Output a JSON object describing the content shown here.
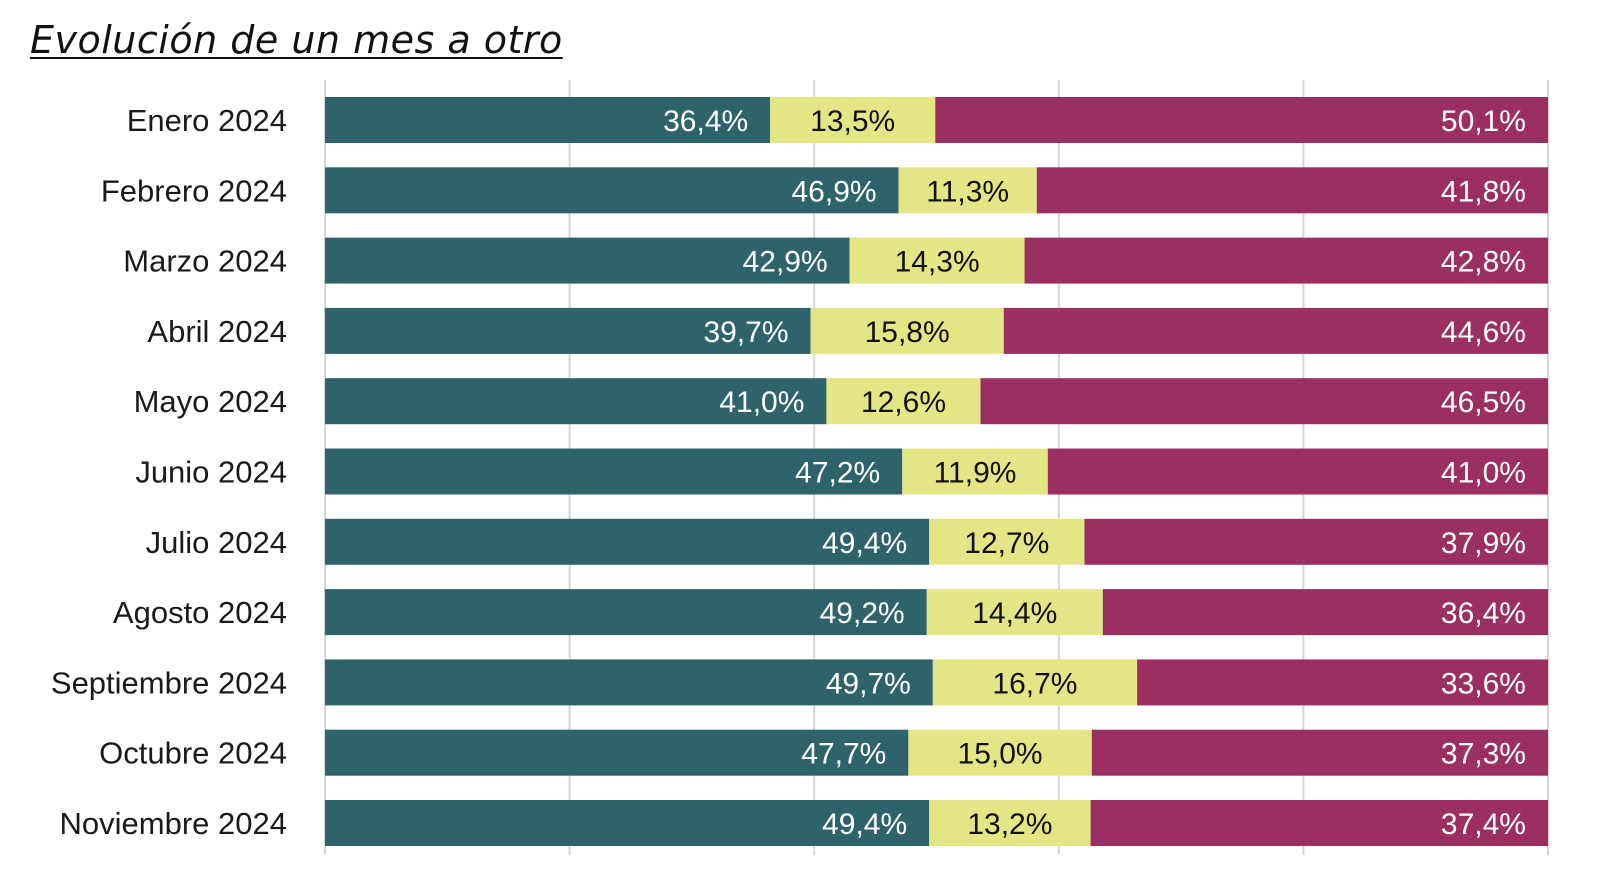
{
  "title": "Evolución de un mes a otro",
  "colors": {
    "series1": "#2e636c",
    "series2": "#e4e686",
    "series3": "#9c2f62",
    "grid": "#d6d6d6",
    "label_light": "#ffffff",
    "label_dark": "#111111"
  },
  "chart_data": {
    "type": "bar",
    "orientation": "horizontal",
    "stacked": true,
    "title": "Evolución de un mes a otro",
    "xlabel": "",
    "ylabel": "",
    "xlim": [
      0,
      100
    ],
    "grid": true,
    "legend": "none",
    "categories": [
      "Enero 2024",
      "Febrero 2024",
      "Marzo 2024",
      "Abril 2024",
      "Mayo 2024",
      "Junio 2024",
      "Julio 2024",
      "Agosto 2024",
      "Septiembre 2024",
      "Octubre 2024",
      "Noviembre 2024"
    ],
    "series": [
      {
        "values": [
          36.4,
          46.9,
          42.9,
          39.7,
          41.0,
          47.2,
          49.4,
          49.2,
          49.7,
          47.7,
          49.4
        ],
        "labels": [
          "36,4%",
          "46,9%",
          "42,9%",
          "39,7%",
          "41,0%",
          "47,2%",
          "49,4%",
          "49,2%",
          "49,7%",
          "47,7%",
          "49,4%"
        ]
      },
      {
        "values": [
          13.5,
          11.3,
          14.3,
          15.8,
          12.6,
          11.9,
          12.7,
          14.4,
          16.7,
          15.0,
          13.2
        ],
        "labels": [
          "13,5%",
          "11,3%",
          "14,3%",
          "15,8%",
          "12,6%",
          "11,9%",
          "12,7%",
          "14,4%",
          "16,7%",
          "15,0%",
          "13,2%"
        ]
      },
      {
        "values": [
          50.1,
          41.8,
          42.8,
          44.6,
          46.5,
          41.0,
          37.9,
          36.4,
          33.6,
          37.3,
          37.4
        ],
        "labels": [
          "50,1%",
          "41,8%",
          "42,8%",
          "44,6%",
          "46,5%",
          "41,0%",
          "37,9%",
          "36,4%",
          "33,6%",
          "37,3%",
          "37,4%"
        ]
      }
    ]
  }
}
